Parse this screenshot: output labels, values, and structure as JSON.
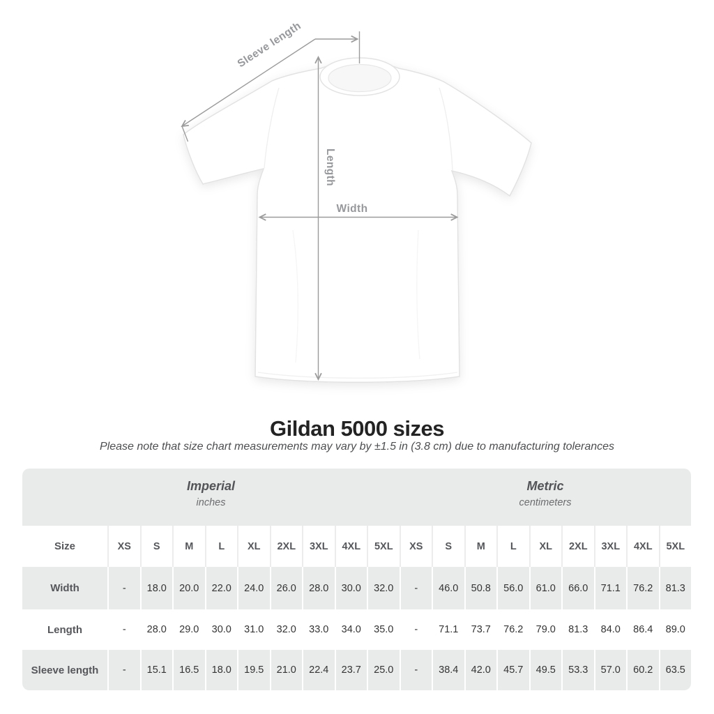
{
  "diagram": {
    "sleeve_length_label": "Sleeve length",
    "length_label": "Length",
    "width_label": "Width",
    "arrow_color": "#9b9b9b"
  },
  "heading": {
    "title": "Gildan 5000 sizes",
    "subtitle": "Please note that size chart measurements may vary by ±1.5 in (3.8 cm) due to manufacturing tolerances"
  },
  "table": {
    "size_header": "Size",
    "unit_groups": [
      {
        "name": "Imperial",
        "unit": "inches"
      },
      {
        "name": "Metric",
        "unit": "centimeters"
      }
    ],
    "sizes": [
      "XS",
      "S",
      "M",
      "L",
      "XL",
      "2XL",
      "3XL",
      "4XL",
      "5XL"
    ],
    "rows": [
      {
        "label": "Width",
        "imperial": [
          "-",
          "18.0",
          "20.0",
          "22.0",
          "24.0",
          "26.0",
          "28.0",
          "30.0",
          "32.0"
        ],
        "metric": [
          "-",
          "46.0",
          "50.8",
          "56.0",
          "61.0",
          "66.0",
          "71.1",
          "76.2",
          "81.3"
        ]
      },
      {
        "label": "Length",
        "imperial": [
          "-",
          "28.0",
          "29.0",
          "30.0",
          "31.0",
          "32.0",
          "33.0",
          "34.0",
          "35.0"
        ],
        "metric": [
          "-",
          "71.1",
          "73.7",
          "76.2",
          "79.0",
          "81.3",
          "84.0",
          "86.4",
          "89.0"
        ]
      },
      {
        "label": "Sleeve length",
        "imperial": [
          "-",
          "15.1",
          "16.5",
          "18.0",
          "19.5",
          "21.0",
          "22.4",
          "23.7",
          "25.0"
        ],
        "metric": [
          "-",
          "38.4",
          "42.0",
          "45.7",
          "49.5",
          "53.3",
          "57.0",
          "60.2",
          "63.5"
        ]
      }
    ],
    "colors": {
      "shade": "#e9eaea",
      "label_text": "#56575b",
      "value_text": "#343434"
    }
  },
  "chart_data": {
    "type": "table",
    "title": "Gildan 5000 sizes",
    "note": "Please note that size chart measurements may vary by ±1.5 in (3.8 cm) due to manufacturing tolerances",
    "columns": [
      "Size",
      "XS",
      "S",
      "M",
      "L",
      "XL",
      "2XL",
      "3XL",
      "4XL",
      "5XL"
    ],
    "unit_groups": [
      "Imperial (inches)",
      "Metric (centimeters)"
    ],
    "rows_imperial": [
      [
        "Width",
        null,
        18.0,
        20.0,
        22.0,
        24.0,
        26.0,
        28.0,
        30.0,
        32.0
      ],
      [
        "Length",
        null,
        28.0,
        29.0,
        30.0,
        31.0,
        32.0,
        33.0,
        34.0,
        35.0
      ],
      [
        "Sleeve length",
        null,
        15.1,
        16.5,
        18.0,
        19.5,
        21.0,
        22.4,
        23.7,
        25.0
      ]
    ],
    "rows_metric": [
      [
        "Width",
        null,
        46.0,
        50.8,
        56.0,
        61.0,
        66.0,
        71.1,
        76.2,
        81.3
      ],
      [
        "Length",
        null,
        71.1,
        73.7,
        76.2,
        79.0,
        81.3,
        84.0,
        86.4,
        89.0
      ],
      [
        "Sleeve length",
        null,
        38.4,
        42.0,
        45.7,
        49.5,
        53.3,
        57.0,
        60.2,
        63.5
      ]
    ]
  }
}
